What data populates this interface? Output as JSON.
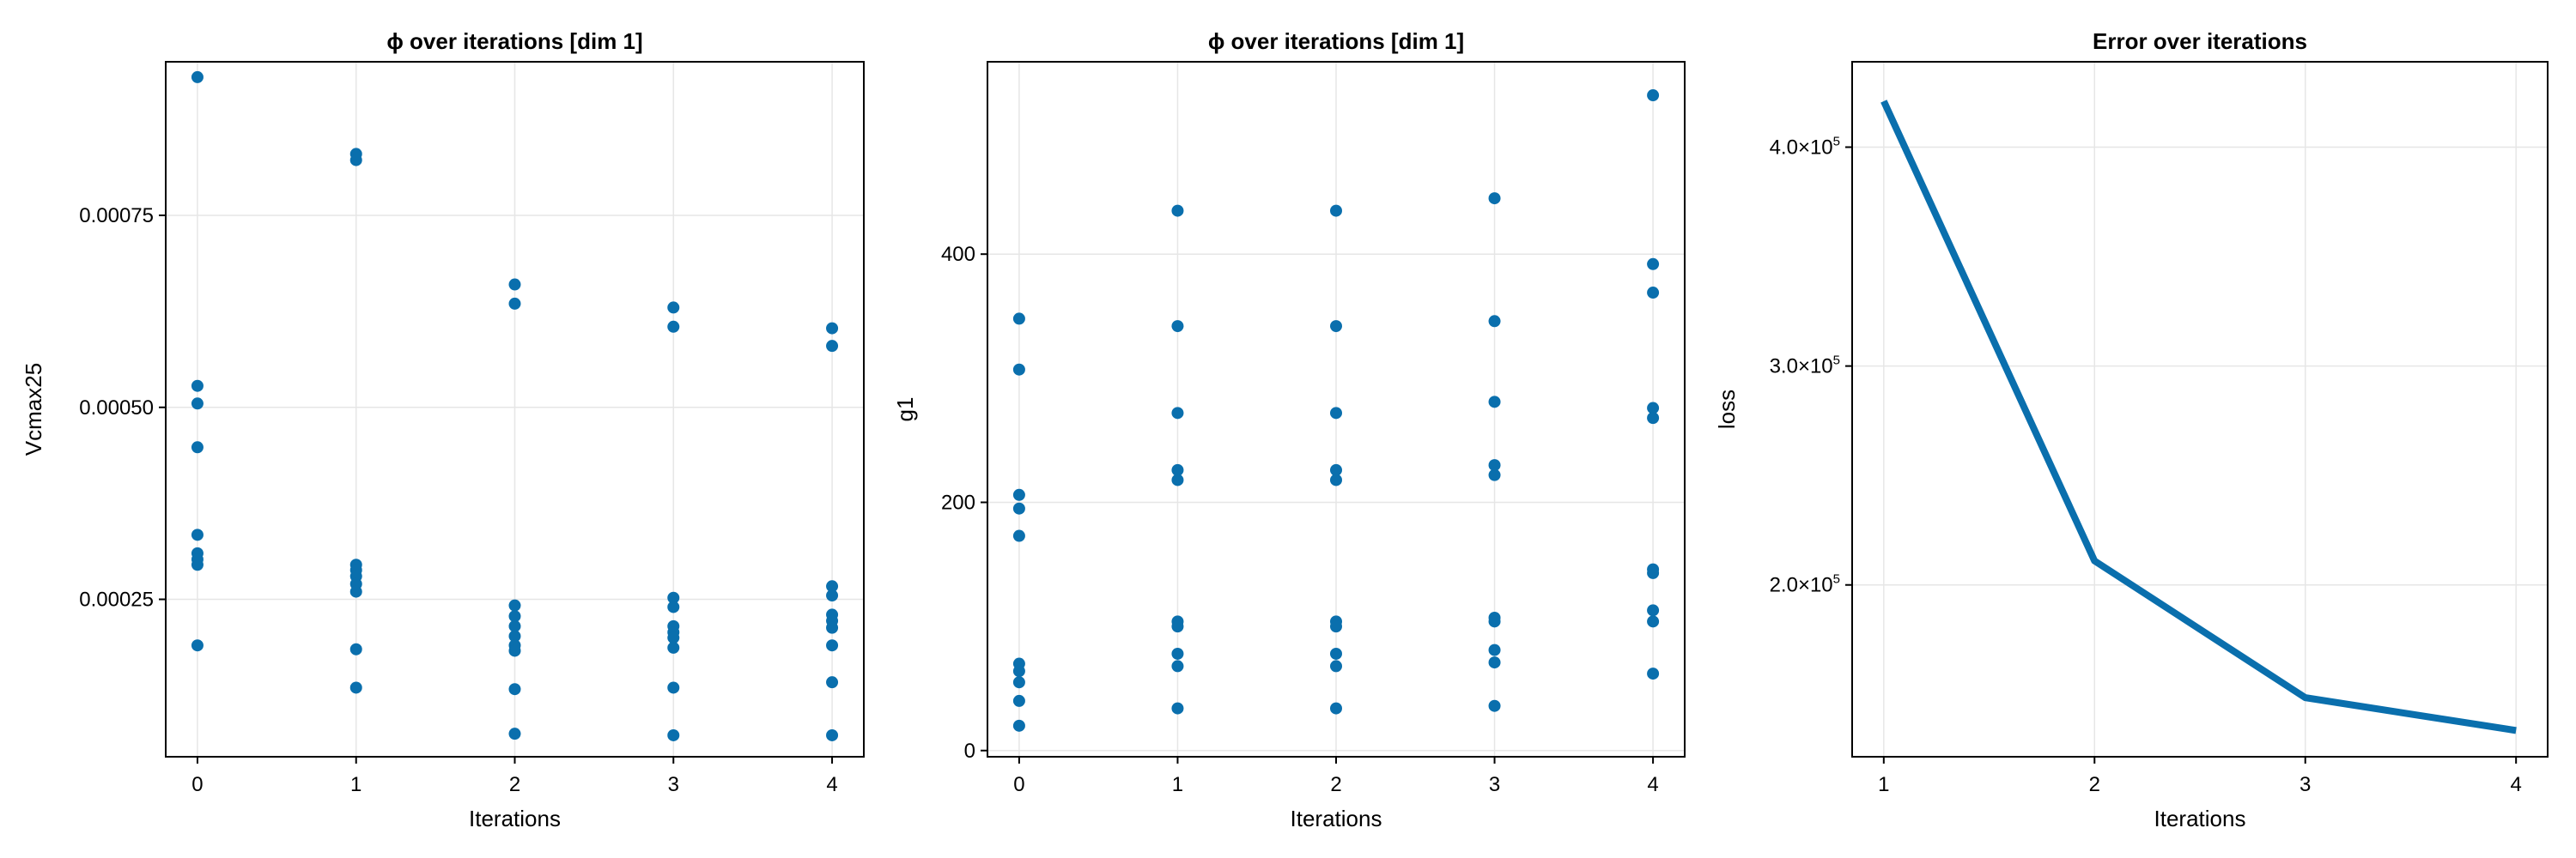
{
  "colors": {
    "series": "#0a6fad"
  },
  "chart_data": [
    {
      "type": "scatter",
      "title": "ϕ over iterations [dim 1]",
      "xlabel": "Iterations",
      "ylabel": "Vcmax25",
      "xlim": [
        -0.2,
        4.2
      ],
      "ylim": [
        4.5e-05,
        0.00095
      ],
      "xticks": [
        0,
        1,
        2,
        3,
        4
      ],
      "xtick_labels": [
        "0",
        "1",
        "2",
        "3",
        "4"
      ],
      "yticks": [
        0.00025,
        0.0005,
        0.00075
      ],
      "ytick_labels": [
        "0.00025",
        "0.00050",
        "0.00075"
      ],
      "grid": true,
      "points": [
        [
          0,
          0.00093
        ],
        [
          0,
          0.000528
        ],
        [
          0,
          0.000505
        ],
        [
          0,
          0.000448
        ],
        [
          0,
          0.000334
        ],
        [
          0,
          0.00031
        ],
        [
          0,
          0.000302
        ],
        [
          0,
          0.000295
        ],
        [
          0,
          0.00019
        ],
        [
          1,
          0.00083
        ],
        [
          1,
          0.000822
        ],
        [
          1,
          0.000295
        ],
        [
          1,
          0.000288
        ],
        [
          1,
          0.00028
        ],
        [
          1,
          0.00027
        ],
        [
          1,
          0.00026
        ],
        [
          1,
          0.000185
        ],
        [
          1,
          0.000135
        ],
        [
          2,
          0.00066
        ],
        [
          2,
          0.000635
        ],
        [
          2,
          0.000242
        ],
        [
          2,
          0.000228
        ],
        [
          2,
          0.000215
        ],
        [
          2,
          0.000202
        ],
        [
          2,
          0.00019
        ],
        [
          2,
          0.000183
        ],
        [
          2,
          0.000133
        ],
        [
          2,
          7.5e-05
        ],
        [
          3,
          0.00063
        ],
        [
          3,
          0.000605
        ],
        [
          3,
          0.000252
        ],
        [
          3,
          0.00024
        ],
        [
          3,
          0.000215
        ],
        [
          3,
          0.000207
        ],
        [
          3,
          0.0002
        ],
        [
          3,
          0.000187
        ],
        [
          3,
          0.000135
        ],
        [
          3,
          7.3e-05
        ],
        [
          4,
          0.000603
        ],
        [
          4,
          0.00058
        ],
        [
          4,
          0.000267
        ],
        [
          4,
          0.000255
        ],
        [
          4,
          0.00023
        ],
        [
          4,
          0.000222
        ],
        [
          4,
          0.000213
        ],
        [
          4,
          0.00019
        ],
        [
          4,
          0.000142
        ],
        [
          4,
          7.3e-05
        ]
      ]
    },
    {
      "type": "scatter",
      "title": "ϕ over iterations [dim 1]",
      "xlabel": "Iterations",
      "ylabel": "g1",
      "xlim": [
        -0.2,
        4.2
      ],
      "ylim": [
        -5,
        555
      ],
      "xticks": [
        0,
        1,
        2,
        3,
        4
      ],
      "xtick_labels": [
        "0",
        "1",
        "2",
        "3",
        "4"
      ],
      "yticks": [
        0,
        200,
        400
      ],
      "ytick_labels": [
        "0",
        "200",
        "400"
      ],
      "grid": true,
      "points": [
        [
          0,
          348
        ],
        [
          0,
          307
        ],
        [
          0,
          206
        ],
        [
          0,
          195
        ],
        [
          0,
          173
        ],
        [
          0,
          70
        ],
        [
          0,
          64
        ],
        [
          0,
          55
        ],
        [
          0,
          40
        ],
        [
          0,
          20
        ],
        [
          1,
          435
        ],
        [
          1,
          342
        ],
        [
          1,
          272
        ],
        [
          1,
          226
        ],
        [
          1,
          218
        ],
        [
          1,
          104
        ],
        [
          1,
          100
        ],
        [
          1,
          78
        ],
        [
          1,
          68
        ],
        [
          1,
          34
        ],
        [
          2,
          435
        ],
        [
          2,
          342
        ],
        [
          2,
          272
        ],
        [
          2,
          226
        ],
        [
          2,
          218
        ],
        [
          2,
          104
        ],
        [
          2,
          100
        ],
        [
          2,
          78
        ],
        [
          2,
          68
        ],
        [
          2,
          34
        ],
        [
          3,
          445
        ],
        [
          3,
          346
        ],
        [
          3,
          281
        ],
        [
          3,
          230
        ],
        [
          3,
          222
        ],
        [
          3,
          107
        ],
        [
          3,
          104
        ],
        [
          3,
          81
        ],
        [
          3,
          71
        ],
        [
          3,
          36
        ],
        [
          4,
          528
        ],
        [
          4,
          392
        ],
        [
          4,
          369
        ],
        [
          4,
          276
        ],
        [
          4,
          268
        ],
        [
          4,
          146
        ],
        [
          4,
          143
        ],
        [
          4,
          113
        ],
        [
          4,
          104
        ],
        [
          4,
          62
        ]
      ]
    },
    {
      "type": "line",
      "title": "Error over iterations",
      "xlabel": "Iterations",
      "ylabel": "loss",
      "xlim": [
        0.85,
        4.15
      ],
      "ylim": [
        121500,
        439000
      ],
      "xticks": [
        1,
        2,
        3,
        4
      ],
      "xtick_labels": [
        "1",
        "2",
        "3",
        "4"
      ],
      "yticks": [
        200000,
        300000,
        400000
      ],
      "ytick_labels": [
        {
          "base": "2.0×10",
          "exp": "5"
        },
        {
          "base": "3.0×10",
          "exp": "5"
        },
        {
          "base": "4.0×10",
          "exp": "5"
        }
      ],
      "grid": true,
      "x": [
        1,
        2,
        3,
        4
      ],
      "y": [
        421000,
        211000,
        148500,
        133500
      ]
    }
  ]
}
